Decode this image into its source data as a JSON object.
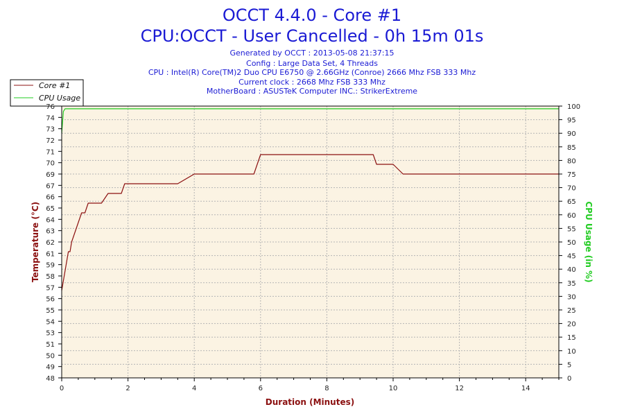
{
  "header": {
    "title": "OCCT 4.4.0 - Core #1",
    "subtitle": "CPU:OCCT - User Cancelled - 0h 15m 01s",
    "info_lines": [
      "Generated by OCCT : 2013-05-08 21:37:15",
      "Config : Large Data Set, 4 Threads",
      "CPU : Intel(R) Core(TM)2 Duo CPU E6750 @ 2.66GHz (Conroe) 2666 Mhz FSB 333 Mhz",
      "Current clock : 2668 Mhz FSB 333 Mhz",
      "MotherBoard : ASUSTeK Computer INC.: StrikerExtreme"
    ]
  },
  "colors": {
    "temperature": "#8b1010",
    "cpu_usage": "#22cc22",
    "plot_background": "#fbf3e3",
    "text": "#1a1ad4",
    "grid": "#b4b4b4"
  },
  "chart_data": {
    "type": "line",
    "xlabel": "Duration (Minutes)",
    "ylabel_left": "Temperature (°C)",
    "ylabel_right": "CPU Usage (in %)",
    "xlim": [
      0,
      15
    ],
    "ylim_left": [
      48,
      76
    ],
    "ylim_right": [
      0,
      100
    ],
    "x_ticks": [
      "0",
      "2",
      "4",
      "6",
      "8",
      "10",
      "12",
      "14"
    ],
    "y_ticks_left": [
      "48",
      "49",
      "50",
      "51",
      "53",
      "54",
      "55",
      "56",
      "57",
      "58",
      "59",
      "61",
      "62",
      "63",
      "64",
      "65",
      "66",
      "67",
      "69",
      "70",
      "71",
      "72",
      "73",
      "74",
      "76"
    ],
    "y_ticks_right": [
      "0",
      "5",
      "10",
      "15",
      "20",
      "25",
      "30",
      "35",
      "40",
      "45",
      "50",
      "55",
      "60",
      "65",
      "70",
      "75",
      "80",
      "85",
      "90",
      "95",
      "100"
    ],
    "grid": true,
    "legend_position": "top-left",
    "series": [
      {
        "name": "Core #1",
        "axis": "left",
        "color": "#8b1010",
        "x": [
          0,
          0.05,
          0.1,
          0.15,
          0.2,
          0.25,
          0.3,
          0.4,
          0.5,
          0.6,
          0.7,
          0.8,
          0.9,
          1.0,
          1.2,
          1.4,
          1.6,
          1.8,
          1.9,
          2.0,
          2.3,
          2.5,
          2.6,
          3.0,
          3.5,
          4.0,
          4.5,
          5.0,
          5.5,
          5.8,
          5.9,
          6.0,
          6.5,
          7.0,
          7.5,
          8.0,
          8.5,
          9.0,
          9.4,
          9.5,
          9.9,
          10.0,
          10.3,
          10.5,
          11.0,
          11.5,
          12.0,
          12.5,
          13.0,
          13.5,
          14.0,
          14.5,
          15.0
        ],
        "y": [
          57,
          58,
          59,
          60,
          61,
          61,
          62,
          63,
          64,
          65,
          65,
          66,
          66,
          66,
          66,
          67,
          67,
          67,
          68,
          68,
          68,
          68,
          68,
          68,
          68,
          69,
          69,
          69,
          69,
          69,
          70,
          71,
          71,
          71,
          71,
          71,
          71,
          71,
          71,
          70,
          70,
          70,
          69,
          69,
          69,
          69,
          69,
          69,
          69,
          69,
          69,
          69,
          69
        ]
      },
      {
        "name": "CPU Usage",
        "axis": "right",
        "color": "#22cc22",
        "x": [
          0,
          0.05,
          0.1,
          15
        ],
        "y": [
          90,
          98,
          99,
          99
        ]
      }
    ]
  }
}
